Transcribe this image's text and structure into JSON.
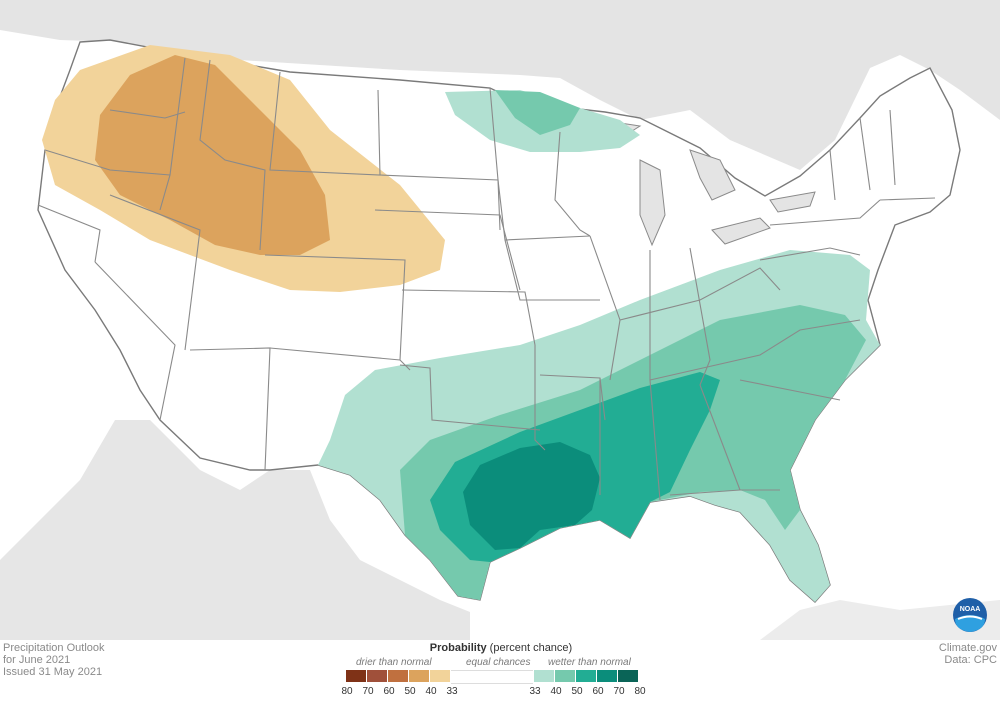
{
  "map": {
    "title_lines": [
      "Precipitation Outlook",
      "for June 2021",
      "Issued 31 May 2021"
    ],
    "credit_lines": [
      "Climate.gov",
      "Data: CPC"
    ],
    "logo_text": "NOAA",
    "regions": [
      {
        "category": "drier",
        "probability": "40-50",
        "area": "Pacific Northwest and northern Rockies (core: Idaho, eastern Oregon, Wyoming)"
      },
      {
        "category": "drier",
        "probability": "33-40",
        "area": "Northwest, northern Plains edge, Colorado/Nebraska"
      },
      {
        "category": "wetter",
        "probability": "33-40",
        "area": "Northern Minnesota / Lake Superior"
      },
      {
        "category": "wetter",
        "probability": "33-40",
        "area": "Texas Panhandle to Mid-Atlantic, Florida peninsula"
      },
      {
        "category": "wetter",
        "probability": "40-50",
        "area": "Southeast, Carolinas, Georgia, south Texas"
      },
      {
        "category": "wetter",
        "probability": "50-60",
        "area": "Lower Mississippi Valley, Alabama, Mississippi"
      },
      {
        "category": "wetter",
        "probability": "60-70",
        "area": "East Texas and Louisiana"
      }
    ]
  },
  "legend": {
    "title_bold": "Probability",
    "title_rest": " (percent chance)",
    "drier_label": "drier than normal",
    "equal_label": "equal chances",
    "wetter_label": "wetter than normal",
    "drier_colors": [
      "#7f3217",
      "#a0503a",
      "#c0703f",
      "#dca35d",
      "#f2d39a"
    ],
    "wetter_colors": [
      "#b1e0d1",
      "#75c9ad",
      "#22ad94",
      "#0b8d7b",
      "#0a6457"
    ],
    "drier_ticks": [
      "80",
      "70",
      "60",
      "50",
      "40",
      "33"
    ],
    "wetter_ticks": [
      "33",
      "40",
      "50",
      "60",
      "70",
      "80"
    ]
  }
}
